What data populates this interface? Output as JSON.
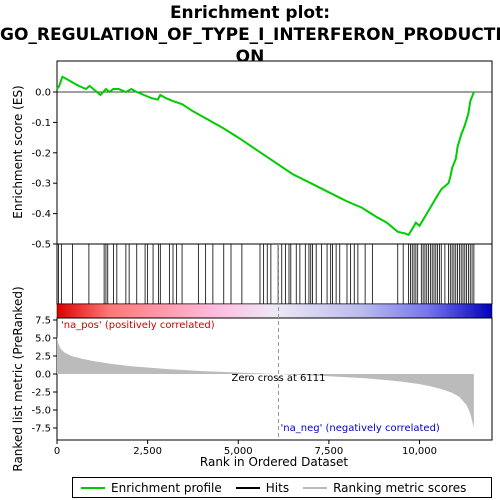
{
  "title_lines": [
    "Enrichment plot:",
    "GO_REGULATION_OF_TYPE_I_INTERFERON_PRODUCTI",
    "ON"
  ],
  "legend": [
    {
      "label": "Enrichment profile",
      "color": "#00cc00"
    },
    {
      "label": "Hits",
      "color": "#000000"
    },
    {
      "label": "Ranking metric scores",
      "color": "#bbbbbb"
    }
  ],
  "chart_data": [
    {
      "type": "line",
      "name": "enrichment-profile",
      "ylabel": "Enrichment score (ES)",
      "xlim": [
        0,
        12000
      ],
      "ylim": [
        -0.5,
        0.0
      ],
      "yticks": [
        0.0,
        -0.1,
        -0.2,
        -0.3,
        -0.4,
        -0.5
      ],
      "ytick_labels": [
        "0.0",
        "-0.1",
        "-0.2",
        "-0.3",
        "-0.4",
        "-0.5"
      ],
      "series": [
        {
          "color": "#00cc00",
          "x": [
            0,
            60,
            150,
            300,
            450,
            600,
            800,
            900,
            1000,
            1200,
            1350,
            1450,
            1550,
            1700,
            1900,
            2050,
            2200,
            2400,
            2600,
            2780,
            2850,
            3000,
            3200,
            3450,
            3700,
            4000,
            4300,
            4600,
            5000,
            5500,
            6000,
            6500,
            7000,
            7500,
            8000,
            8200,
            8400,
            8800,
            9100,
            9400,
            9600,
            9700,
            9800,
            9900,
            10000,
            10100,
            10200,
            10300,
            10400,
            10500,
            10600,
            10700,
            10800,
            10850,
            10900,
            11000,
            11050,
            11150,
            11250,
            11350,
            11400,
            11500
          ],
          "y": [
            0.01,
            0.02,
            0.05,
            0.04,
            0.03,
            0.02,
            0.01,
            0.02,
            0.01,
            -0.01,
            0.01,
            0.0,
            0.01,
            0.01,
            0.0,
            0.01,
            0.0,
            -0.01,
            -0.02,
            -0.025,
            -0.01,
            -0.02,
            -0.03,
            -0.04,
            -0.06,
            -0.08,
            -0.1,
            -0.12,
            -0.15,
            -0.19,
            -0.23,
            -0.27,
            -0.3,
            -0.33,
            -0.36,
            -0.37,
            -0.38,
            -0.41,
            -0.43,
            -0.46,
            -0.465,
            -0.47,
            -0.45,
            -0.43,
            -0.44,
            -0.42,
            -0.4,
            -0.38,
            -0.36,
            -0.34,
            -0.32,
            -0.31,
            -0.3,
            -0.28,
            -0.25,
            -0.22,
            -0.18,
            -0.14,
            -0.11,
            -0.07,
            -0.03,
            0.0
          ]
        }
      ]
    },
    {
      "type": "scatter",
      "name": "hits",
      "xlim": [
        0,
        12000
      ],
      "hit_positions": [
        40,
        120,
        430,
        880,
        1300,
        1350,
        1400,
        1560,
        1650,
        1900,
        1990,
        2200,
        2430,
        2500,
        2650,
        2800,
        2850,
        3100,
        3200,
        3300,
        3450,
        3900,
        4100,
        4300,
        4600,
        4800,
        5100,
        5600,
        5700,
        5800,
        5900,
        6100,
        6200,
        6300,
        6400,
        6450,
        6600,
        6700,
        6850,
        6950,
        7000,
        7050,
        7150,
        7300,
        7450,
        7550,
        7600,
        7700,
        7800,
        8000,
        8100,
        8200,
        8300,
        8500,
        8700,
        9400,
        9550,
        9700,
        9750,
        9800,
        9850,
        9900,
        9950,
        10050,
        10100,
        10150,
        10200,
        10250,
        10300,
        10350,
        10400,
        10450,
        10500,
        10550,
        10600,
        10700,
        10800,
        10850,
        10900,
        10950,
        11000,
        11050,
        11100,
        11150,
        11200,
        11250,
        11300,
        11350,
        11400,
        11450,
        11500
      ]
    },
    {
      "type": "area",
      "name": "ranked-list-metric",
      "ylabel": "Ranked list metric (PreRanked)",
      "xlabel": "Rank in Ordered Dataset",
      "xlim": [
        0,
        12000
      ],
      "ylim": [
        -8.5,
        8.5
      ],
      "xticks": [
        0,
        2500,
        5000,
        7500,
        10000
      ],
      "xtick_labels": [
        "0",
        "2,500",
        "5,000",
        "7,500",
        "10,000"
      ],
      "yticks": [
        7.5,
        5.0,
        2.5,
        0.0,
        -2.5,
        -5.0,
        -7.5
      ],
      "ytick_labels": [
        "7.5",
        "5.0",
        "2.5",
        "0.0",
        "-2.5",
        "-5.0",
        "-7.5"
      ],
      "series": [
        {
          "color": "#bbbbbb",
          "x": [
            0,
            30,
            100,
            200,
            400,
            700,
            1000,
            1500,
            2000,
            2500,
            3000,
            3500,
            4000,
            4500,
            5000,
            5500,
            6111,
            6500,
            7000,
            7500,
            8000,
            8500,
            9000,
            9500,
            10000,
            10300,
            10600,
            10900,
            11100,
            11300,
            11400,
            11500
          ],
          "y": [
            5.3,
            4.3,
            3.5,
            3.0,
            2.5,
            2.1,
            1.8,
            1.4,
            1.1,
            0.9,
            0.7,
            0.55,
            0.4,
            0.3,
            0.2,
            0.1,
            0.0,
            -0.1,
            -0.2,
            -0.3,
            -0.45,
            -0.6,
            -0.8,
            -1.05,
            -1.4,
            -1.7,
            -2.1,
            -2.6,
            -3.2,
            -4.3,
            -5.5,
            -7.5
          ]
        }
      ],
      "annotations": {
        "pos_label": "'na_pos' (positively correlated)",
        "neg_label": "'na_neg' (negatively correlated)",
        "zero_cross_label": "Zero cross at 6111",
        "zero_cross_x": 6111
      },
      "colors": {
        "pos": "#cc0000",
        "neg": "#0000cc"
      }
    }
  ]
}
